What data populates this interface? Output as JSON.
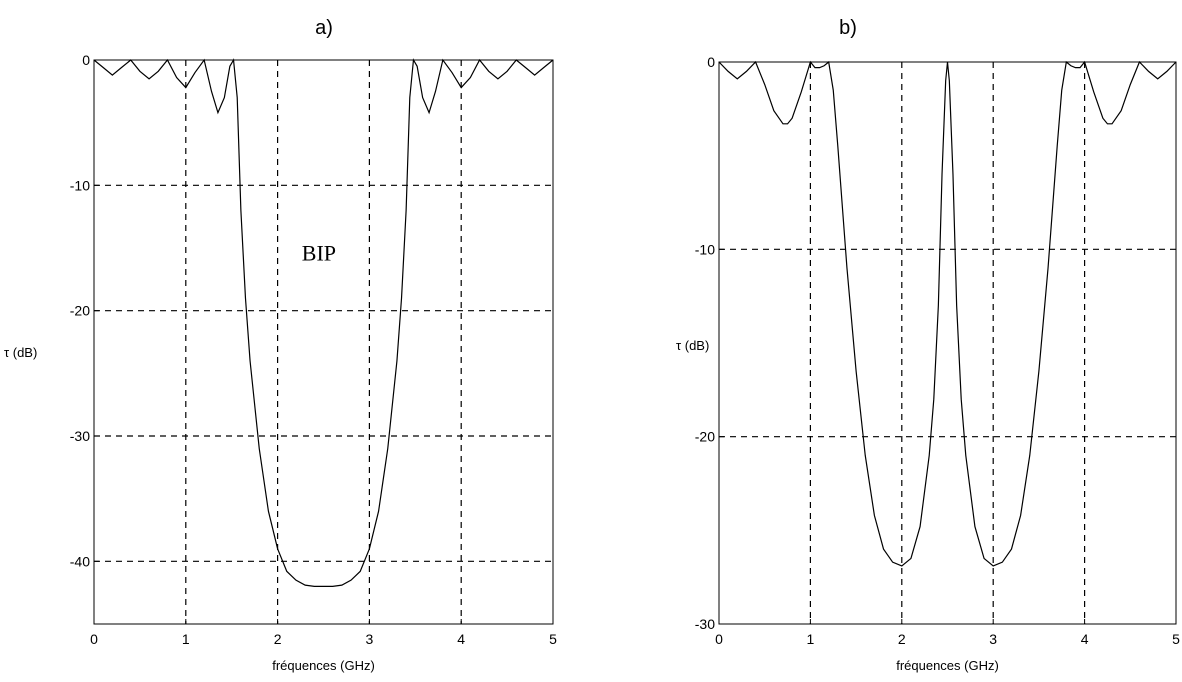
{
  "chart_data": [
    {
      "type": "line",
      "panel_label": "a)",
      "xlabel": "fréquences (GHz)",
      "ylabel": "τ (dB)",
      "xlim": [
        0,
        5
      ],
      "ylim": [
        -45,
        0
      ],
      "x_ticks": [
        0,
        1,
        2,
        3,
        4,
        5
      ],
      "y_ticks": [
        0,
        -10,
        -20,
        -30,
        -40
      ],
      "grid": true,
      "annotations": [
        {
          "text": "BIP",
          "x": 2.45,
          "y": -16
        }
      ],
      "series": [
        {
          "x": [
            0,
            0.1,
            0.2,
            0.3,
            0.4,
            0.5,
            0.6,
            0.7,
            0.8,
            0.9,
            1.0,
            1.1,
            1.2,
            1.28,
            1.35,
            1.42,
            1.48,
            1.52,
            1.56,
            1.6,
            1.65,
            1.7,
            1.8,
            1.9,
            2.0,
            2.1,
            2.2,
            2.3,
            2.4,
            2.5,
            2.6,
            2.7,
            2.8,
            2.9,
            3.0,
            3.1,
            3.2,
            3.3,
            3.35,
            3.4,
            3.44,
            3.48,
            3.52,
            3.58,
            3.65,
            3.72,
            3.8,
            3.9,
            4.0,
            4.1,
            4.2,
            4.3,
            4.4,
            4.5,
            4.6,
            4.7,
            4.8,
            4.9,
            5.0
          ],
          "y": [
            0,
            -0.6,
            -1.2,
            -0.6,
            0,
            -0.9,
            -1.5,
            -0.9,
            0,
            -1.4,
            -2.2,
            -1.0,
            0,
            -2.5,
            -4.2,
            -3.0,
            -0.5,
            0,
            -3,
            -12,
            -19,
            -24,
            -31,
            -36,
            -39,
            -40.8,
            -41.5,
            -41.9,
            -42,
            -42,
            -42,
            -41.9,
            -41.5,
            -40.8,
            -39,
            -36,
            -31,
            -24,
            -19,
            -12,
            -3,
            0,
            -0.5,
            -3.0,
            -4.2,
            -2.5,
            0,
            -1.0,
            -2.2,
            -1.4,
            0,
            -0.9,
            -1.5,
            -0.9,
            0,
            -0.6,
            -1.2,
            -0.6,
            0
          ]
        }
      ]
    },
    {
      "type": "line",
      "panel_label": "b)",
      "xlabel": "fréquences (GHz)",
      "ylabel": "τ (dB)",
      "xlim": [
        0,
        5
      ],
      "ylim": [
        -30,
        0
      ],
      "x_ticks": [
        0,
        1,
        2,
        3,
        4,
        5
      ],
      "y_ticks": [
        0,
        -10,
        -20,
        -30
      ],
      "grid": true,
      "series": [
        {
          "x": [
            0,
            0.1,
            0.2,
            0.3,
            0.4,
            0.5,
            0.6,
            0.7,
            0.75,
            0.8,
            0.9,
            1.0,
            1.05,
            1.1,
            1.15,
            1.2,
            1.25,
            1.3,
            1.4,
            1.5,
            1.6,
            1.7,
            1.8,
            1.9,
            2.0,
            2.1,
            2.2,
            2.3,
            2.35,
            2.4,
            2.44,
            2.48,
            2.5,
            2.52,
            2.56,
            2.6,
            2.65,
            2.7,
            2.8,
            2.9,
            3.0,
            3.1,
            3.2,
            3.3,
            3.4,
            3.5,
            3.6,
            3.7,
            3.75,
            3.8,
            3.85,
            3.9,
            3.95,
            4.0,
            4.1,
            4.2,
            4.25,
            4.3,
            4.4,
            4.5,
            4.6,
            4.7,
            4.8,
            4.9,
            5.0
          ],
          "y": [
            0,
            -0.5,
            -0.9,
            -0.5,
            0,
            -1.2,
            -2.6,
            -3.3,
            -3.3,
            -3.0,
            -1.6,
            0,
            -0.3,
            -0.3,
            -0.2,
            0,
            -1.5,
            -4.5,
            -11,
            -16.5,
            -21,
            -24.2,
            -26,
            -26.7,
            -26.9,
            -26.5,
            -24.8,
            -21,
            -18,
            -13,
            -6,
            -1,
            0,
            -1,
            -6,
            -13,
            -18,
            -21,
            -24.8,
            -26.5,
            -26.9,
            -26.7,
            -26,
            -24.2,
            -21,
            -16.5,
            -11,
            -4.5,
            -1.5,
            0,
            -0.2,
            -0.3,
            -0.3,
            0,
            -1.6,
            -3.0,
            -3.3,
            -3.3,
            -2.6,
            -1.2,
            0,
            -0.5,
            -0.9,
            -0.5,
            0
          ]
        }
      ]
    }
  ]
}
